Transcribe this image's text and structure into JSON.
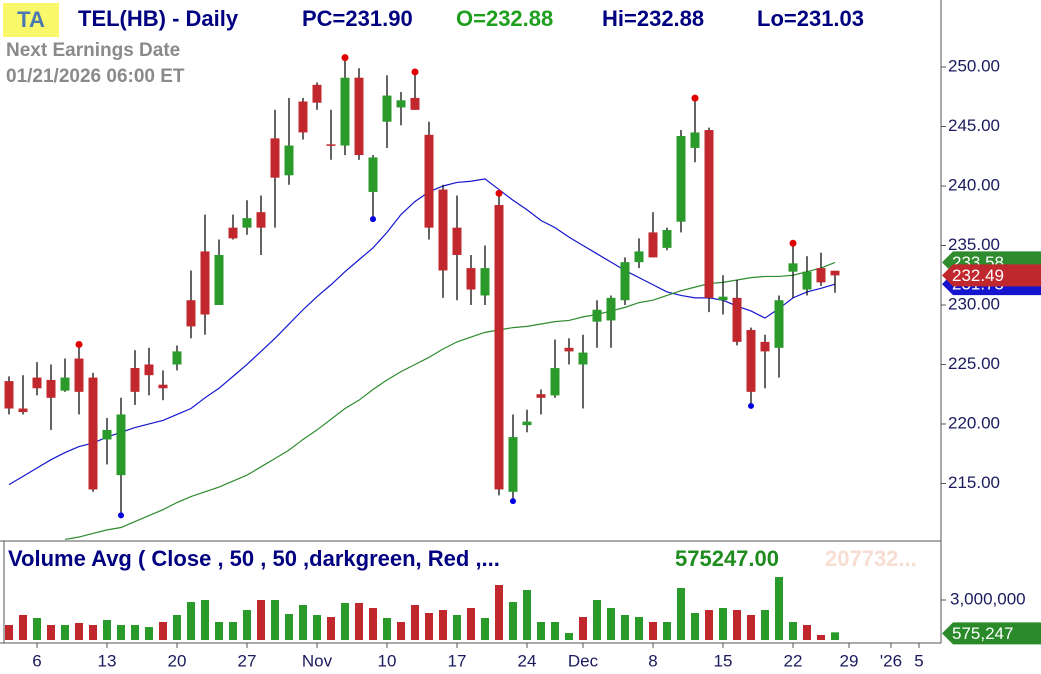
{
  "badge": "TA",
  "chart_data": {
    "type": "candlestick",
    "title": "TEL(HB) - Daily",
    "quote": [
      {
        "text": "PC=231.90",
        "color": "#000080"
      },
      {
        "text": "O=232.88",
        "color": "#1ea01e"
      },
      {
        "text": "Hi=232.88",
        "color": "#000080"
      },
      {
        "text": "Lo=231.03",
        "color": "#000080"
      }
    ],
    "annotations": [
      "Next Earnings Date",
      "01/21/2026  06:00 ET"
    ],
    "categories": [
      null,
      null,
      "6",
      null,
      null,
      null,
      null,
      "13",
      null,
      null,
      null,
      null,
      "20",
      null,
      null,
      null,
      null,
      "27",
      null,
      null,
      null,
      null,
      "Nov",
      null,
      null,
      null,
      null,
      "10",
      null,
      null,
      null,
      null,
      "17",
      null,
      null,
      null,
      null,
      "24",
      null,
      null,
      null,
      "Dec",
      null,
      null,
      null,
      null,
      "8",
      null,
      null,
      null,
      null,
      "15",
      null,
      null,
      null,
      null,
      "22",
      null,
      null,
      null,
      "29",
      null,
      null,
      "'26",
      null,
      "5"
    ],
    "open": [
      223.6,
      221.3,
      223.9,
      223.7,
      222.8,
      225.5,
      223.9,
      218.7,
      215.7,
      224.7,
      225.0,
      223.3,
      225.0,
      230.4,
      234.5,
      230.0,
      236.5,
      236.5,
      237.8,
      244.0,
      240.9,
      247.1,
      248.5,
      243.5,
      243.4,
      249.1,
      239.5,
      245.4,
      246.6,
      247.4,
      244.3,
      239.7,
      236.5,
      233.1,
      230.8,
      238.4,
      214.3,
      219.9,
      222.5,
      222.4,
      226.4,
      225.0,
      228.6,
      228.7,
      230.4,
      233.6,
      236.1,
      234.8,
      237.0,
      243.2,
      244.7,
      230.4,
      230.6,
      227.9,
      226.9,
      226.4,
      232.8,
      231.3,
      233.1,
      232.88,
      null,
      null,
      null,
      null,
      null,
      null
    ],
    "high": [
      224.0,
      224.1,
      225.2,
      225.0,
      225.5,
      226.6,
      224.3,
      220.5,
      222.2,
      226.2,
      226.4,
      224.5,
      226.6,
      232.9,
      237.6,
      235.5,
      237.6,
      238.8,
      239.2,
      246.4,
      247.4,
      247.4,
      248.7,
      246.4,
      250.7,
      249.9,
      242.6,
      249.3,
      247.9,
      249.5,
      245.4,
      240.1,
      239.2,
      234.2,
      235.0,
      239.3,
      220.8,
      221.2,
      222.9,
      227.1,
      227.2,
      227.5,
      230.4,
      230.8,
      234.0,
      235.6,
      237.8,
      236.5,
      244.7,
      247.3,
      244.9,
      232.5,
      232.1,
      228.1,
      227.5,
      230.8,
      235.1,
      234.1,
      234.4,
      232.88,
      null,
      null,
      null,
      null,
      null,
      null
    ],
    "low": [
      220.8,
      220.8,
      222.4,
      219.5,
      222.7,
      220.8,
      214.3,
      216.6,
      212.4,
      221.6,
      222.4,
      222.0,
      224.5,
      227.2,
      227.5,
      230.0,
      235.5,
      235.9,
      234.2,
      236.5,
      240.1,
      243.9,
      246.4,
      242.2,
      242.6,
      242.2,
      237.3,
      243.2,
      245.1,
      246.4,
      235.5,
      230.6,
      230.4,
      230.0,
      230.0,
      214.0,
      213.6,
      219.3,
      220.8,
      222.2,
      225.0,
      221.3,
      226.4,
      226.4,
      230.0,
      233.1,
      234.0,
      234.6,
      236.1,
      242.0,
      229.4,
      229.2,
      226.6,
      221.6,
      223.0,
      223.9,
      230.6,
      230.8,
      231.6,
      231.03,
      null,
      null,
      null,
      null,
      null,
      null
    ],
    "close": [
      221.3,
      221.0,
      223.0,
      222.2,
      223.9,
      222.7,
      214.5,
      219.5,
      220.8,
      222.7,
      224.1,
      223.0,
      226.1,
      228.2,
      229.2,
      234.2,
      235.6,
      237.3,
      236.5,
      240.7,
      243.4,
      244.5,
      247.0,
      243.4,
      249.1,
      242.6,
      242.4,
      247.6,
      247.2,
      246.4,
      236.5,
      232.9,
      234.2,
      231.3,
      233.1,
      214.5,
      218.9,
      220.2,
      222.2,
      224.7,
      226.1,
      226.0,
      229.6,
      230.6,
      233.6,
      234.5,
      234.0,
      236.3,
      244.2,
      244.5,
      230.6,
      230.7,
      226.9,
      222.7,
      226.1,
      230.4,
      233.5,
      232.8,
      231.9,
      232.49,
      null,
      null,
      null,
      null,
      null,
      null
    ],
    "up_color": "#2a9a2a",
    "down_color": "#c0282d",
    "overlays": [
      {
        "color": "#1515d0",
        "values": [
          214.9,
          215.6,
          216.3,
          217.0,
          217.6,
          218.1,
          218.4,
          218.9,
          219.3,
          219.7,
          220.0,
          220.3,
          220.8,
          221.3,
          222.2,
          223.0,
          224.0,
          225.0,
          226.1,
          227.2,
          228.4,
          229.6,
          230.7,
          231.7,
          232.8,
          233.8,
          234.8,
          236.1,
          237.6,
          238.7,
          239.5,
          240.0,
          240.3,
          240.4,
          240.6,
          239.7,
          238.8,
          238.0,
          237.1,
          236.5,
          235.7,
          235.0,
          234.3,
          233.6,
          232.9,
          232.3,
          231.7,
          231.1,
          230.8,
          230.6,
          230.6,
          230.4,
          229.9,
          229.5,
          228.9,
          229.7,
          230.6,
          231.1,
          231.4,
          231.75,
          null,
          null,
          null,
          null,
          null,
          null
        ]
      },
      {
        "color": "#2e8b2e",
        "values": [
          null,
          null,
          null,
          null,
          210.3,
          210.5,
          210.8,
          211.1,
          211.3,
          211.8,
          212.3,
          212.8,
          213.4,
          213.9,
          214.3,
          214.7,
          215.2,
          215.7,
          216.4,
          217.1,
          217.8,
          218.7,
          219.5,
          220.4,
          221.3,
          222.0,
          222.9,
          223.7,
          224.4,
          225.0,
          225.6,
          226.3,
          226.9,
          227.3,
          227.7,
          227.9,
          228.1,
          228.2,
          228.4,
          228.6,
          228.7,
          229.0,
          229.2,
          229.5,
          229.8,
          230.2,
          230.4,
          230.8,
          231.2,
          231.5,
          231.8,
          231.9,
          232.1,
          232.3,
          232.4,
          232.4,
          232.5,
          232.8,
          233.1,
          233.58,
          null,
          null,
          null,
          null,
          null,
          null
        ]
      }
    ],
    "swing_highs": [
      5,
      24,
      29,
      35,
      49,
      56
    ],
    "swing_lows": [
      8,
      26,
      36,
      53
    ],
    "high_dot_color": "#e00000",
    "low_dot_color": "#0000e0",
    "ylim": [
      210.25,
      255.63
    ],
    "yticks": [
      {
        "value": 215,
        "label": "215.00"
      },
      {
        "value": 220,
        "label": "220.00"
      },
      {
        "value": 225,
        "label": "225.00"
      },
      {
        "value": 230,
        "label": "230.00"
      },
      {
        "value": 235,
        "label": "235.00"
      },
      {
        "value": 240,
        "label": "240.00"
      },
      {
        "value": 245,
        "label": "245.00"
      },
      {
        "value": 250,
        "label": "250.00"
      }
    ],
    "tags": [
      {
        "value": 233.58,
        "label": "233.58",
        "color": "#2e8b2e"
      },
      {
        "value": 231.75,
        "label": "231.75",
        "color": "#1515d0"
      },
      {
        "value": 232.49,
        "label": "232.49",
        "color": "#c0282d"
      }
    ],
    "volume": {
      "title": "Volume Avg ( Close , 50 , 50 ,darkgreen, Red ,...",
      "readout": "575247.00",
      "readout2": "207732...",
      "values": [
        1125000,
        1875000,
        1650000,
        1125000,
        1125000,
        1275000,
        1125000,
        1500000,
        1125000,
        1125000,
        975000,
        1350000,
        1875000,
        2850000,
        3000000,
        1350000,
        1350000,
        2250000,
        3000000,
        3000000,
        1950000,
        2625000,
        1875000,
        1725000,
        2775000,
        2775000,
        2400000,
        1650000,
        1350000,
        2625000,
        2025000,
        2250000,
        1875000,
        2400000,
        1650000,
        4125000,
        2850000,
        3750000,
        1350000,
        1350000,
        525000,
        1725000,
        3000000,
        2400000,
        1875000,
        1725000,
        1350000,
        1350000,
        3900000,
        2025000,
        2250000,
        2400000,
        2250000,
        1875000,
        2250000,
        4725000,
        1350000,
        1125000,
        375000,
        575247,
        null,
        null,
        null,
        null,
        null,
        null
      ],
      "ylim": [
        0,
        7000000
      ],
      "yticks": [
        {
          "value": 3000000,
          "label": "3,000,000"
        }
      ],
      "tag": {
        "value": 575247,
        "label": "575,247",
        "color": "#2a8a2a"
      }
    }
  }
}
